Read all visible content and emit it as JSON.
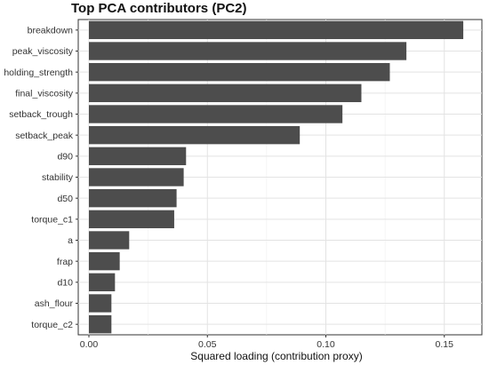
{
  "chart_data": {
    "type": "bar",
    "orientation": "horizontal",
    "title": "Top PCA contributors (PC2)",
    "xlabel": "Squared loading (contribution proxy)",
    "ylabel": "",
    "xlim": [
      0,
      0.165
    ],
    "xticks": [
      0.0,
      0.05,
      0.1,
      0.15
    ],
    "xtick_labels": [
      "0.00",
      "0.05",
      "0.10",
      "0.15"
    ],
    "grid": true,
    "legend": "none",
    "bar_color": "#4d4d4d",
    "categories": [
      "breakdown",
      "peak_viscosity",
      "holding_strength",
      "final_viscosity",
      "setback_trough",
      "setback_peak",
      "d90",
      "stability",
      "d50",
      "torque_c1",
      "a",
      "frap",
      "d10",
      "ash_flour",
      "torque_c2"
    ],
    "values": [
      0.158,
      0.134,
      0.127,
      0.115,
      0.107,
      0.089,
      0.041,
      0.04,
      0.037,
      0.036,
      0.017,
      0.013,
      0.011,
      0.0095,
      0.0095
    ]
  }
}
